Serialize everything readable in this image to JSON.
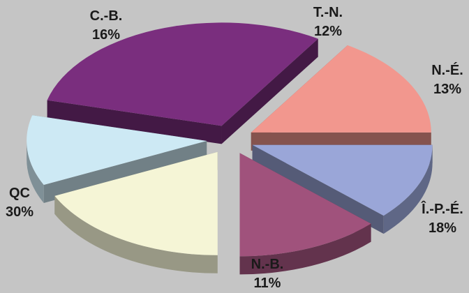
{
  "chart_data": {
    "type": "pie",
    "style": "3d-exploded",
    "title": "",
    "legend": "none",
    "slices": [
      {
        "label": "T.-N.",
        "value": 12,
        "value_label": "12%",
        "color": "#9aa6d8"
      },
      {
        "label": "N.-É.",
        "value": 13,
        "value_label": "13%",
        "color": "#a0527c"
      },
      {
        "label": "Î.-P.-É.",
        "value": 18,
        "value_label": "18%",
        "color": "#f5f5d6"
      },
      {
        "label": "N.-B.",
        "value": 11,
        "value_label": "11%",
        "color": "#cde9f4"
      },
      {
        "label": "QC",
        "value": 30,
        "value_label": "30%",
        "color": "#7a2e7e"
      },
      {
        "label": "C.-B.",
        "value": 16,
        "value_label": "16%",
        "color": "#f2978e"
      }
    ]
  }
}
